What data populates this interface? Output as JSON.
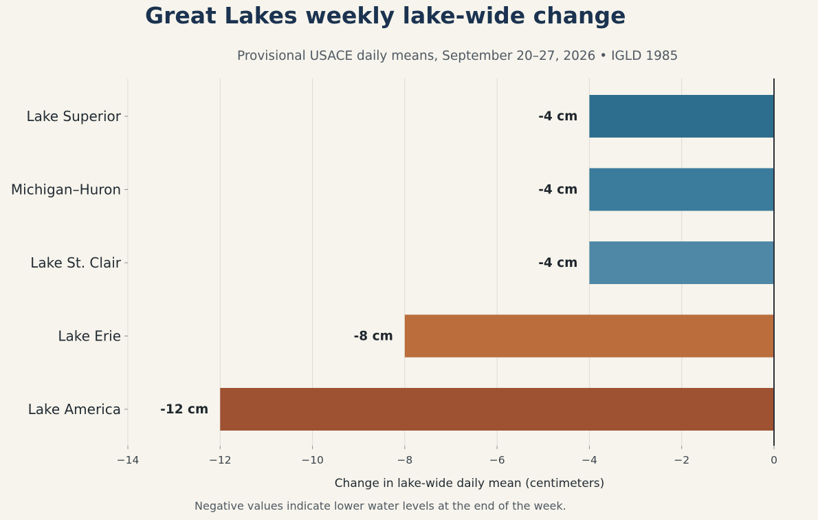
{
  "chart_data": {
    "type": "bar",
    "orientation": "horizontal",
    "title": "Great Lakes weekly lake-wide change",
    "subtitle": "Provisional USACE daily means, September 20–27, 2026 • IGLD 1985",
    "xlabel": "Change in lake-wide daily mean (centimeters)",
    "ylabel": "",
    "footnote": "Negative values indicate lower water levels at the end of the week.",
    "xlim": [
      -14,
      0
    ],
    "xticks": [
      -14,
      -12,
      -10,
      -8,
      -6,
      -4,
      -2,
      0
    ],
    "xtick_labels": [
      "−14",
      "−12",
      "−10",
      "−8",
      "−6",
      "−4",
      "−2",
      "0"
    ],
    "grid": "vertical",
    "categories": [
      "Lake Superior",
      "Michigan–Huron",
      "Lake St. Clair",
      "Lake Erie",
      "Lake America"
    ],
    "values": [
      -4,
      -4,
      -4,
      -8,
      -12
    ],
    "value_labels": [
      "-4 cm",
      "-4 cm",
      "-4 cm",
      "-8 cm",
      "-12 cm"
    ],
    "colors": [
      "#2d6e8e",
      "#3b7b9b",
      "#4f88a6",
      "#bb6d3c",
      "#9e5232"
    ]
  }
}
